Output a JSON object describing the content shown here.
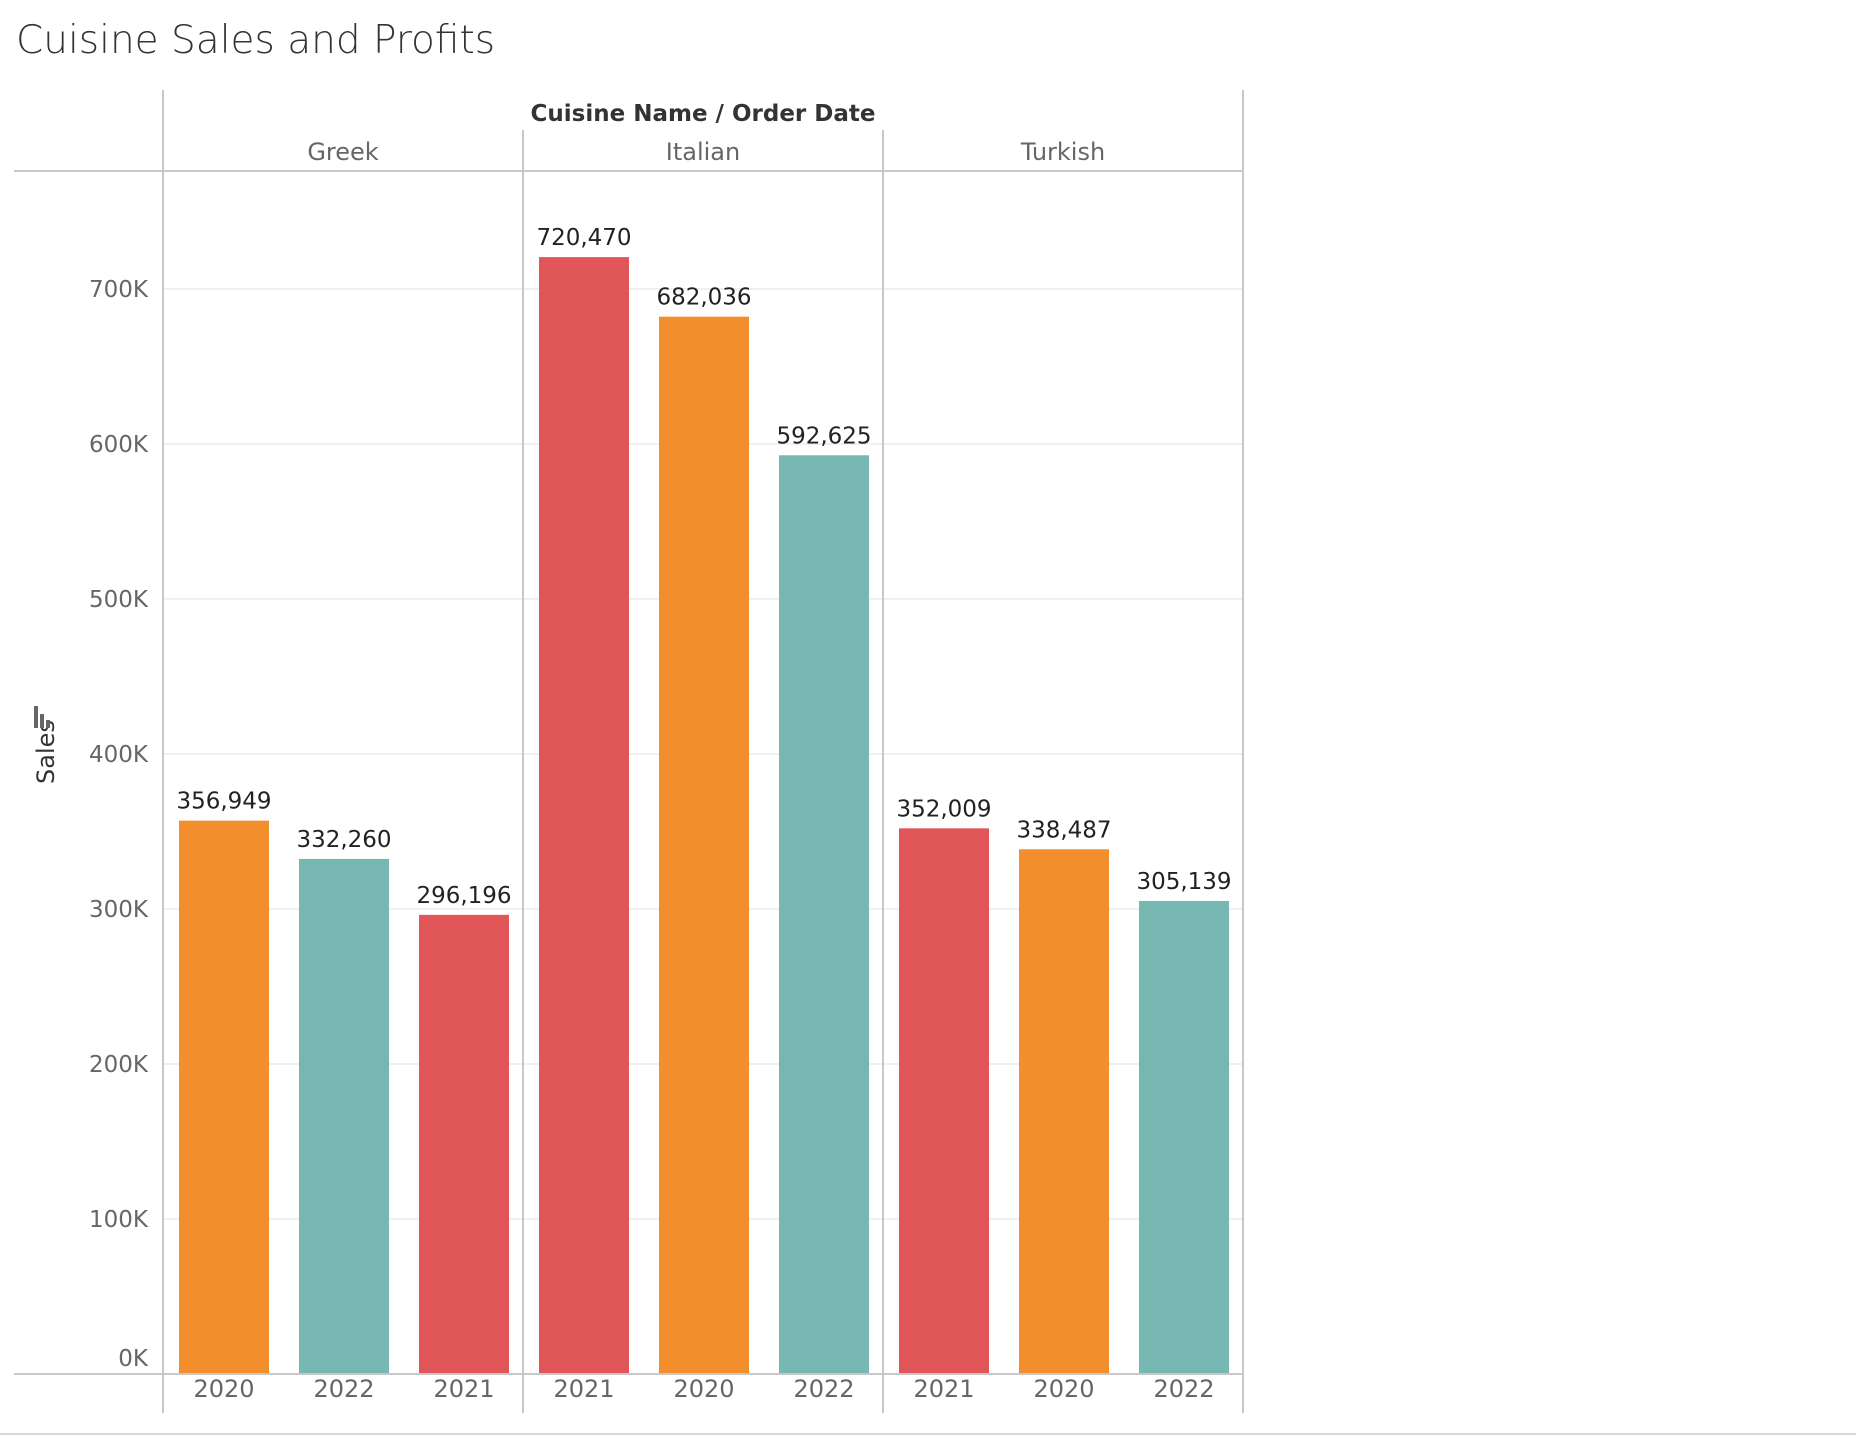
{
  "title": "Cuisine Sales and Profits",
  "chart_data": {
    "type": "bar",
    "title": "Cuisine Sales and Profits",
    "column_header": "Cuisine Name  /  Order Date",
    "ylabel": "Sales",
    "ylabel_icon": "sort-icon",
    "ylim": [
      0,
      776000
    ],
    "yticks": [
      {
        "value": 0,
        "label": "0K"
      },
      {
        "value": 100000,
        "label": "100K"
      },
      {
        "value": 200000,
        "label": "200K"
      },
      {
        "value": 300000,
        "label": "300K"
      },
      {
        "value": 400000,
        "label": "400K"
      },
      {
        "value": 500000,
        "label": "500K"
      },
      {
        "value": 600000,
        "label": "600K"
      },
      {
        "value": 700000,
        "label": "700K"
      }
    ],
    "grid": true,
    "legend": "none",
    "colors": {
      "2020": "#f28e2b",
      "2021": "#e15759",
      "2022": "#76b7b2"
    },
    "panels": [
      {
        "name": "Greek",
        "bars": [
          {
            "year": "2020",
            "value": 356949,
            "label": "356,949"
          },
          {
            "year": "2022",
            "value": 332260,
            "label": "332,260"
          },
          {
            "year": "2021",
            "value": 296196,
            "label": "296,196"
          }
        ]
      },
      {
        "name": "Italian",
        "bars": [
          {
            "year": "2021",
            "value": 720470,
            "label": "720,470"
          },
          {
            "year": "2020",
            "value": 682036,
            "label": "682,036"
          },
          {
            "year": "2022",
            "value": 592625,
            "label": "592,625"
          }
        ]
      },
      {
        "name": "Turkish",
        "bars": [
          {
            "year": "2021",
            "value": 352009,
            "label": "352,009"
          },
          {
            "year": "2020",
            "value": 338487,
            "label": "338,487"
          },
          {
            "year": "2022",
            "value": 305139,
            "label": "305,139"
          }
        ]
      }
    ]
  }
}
